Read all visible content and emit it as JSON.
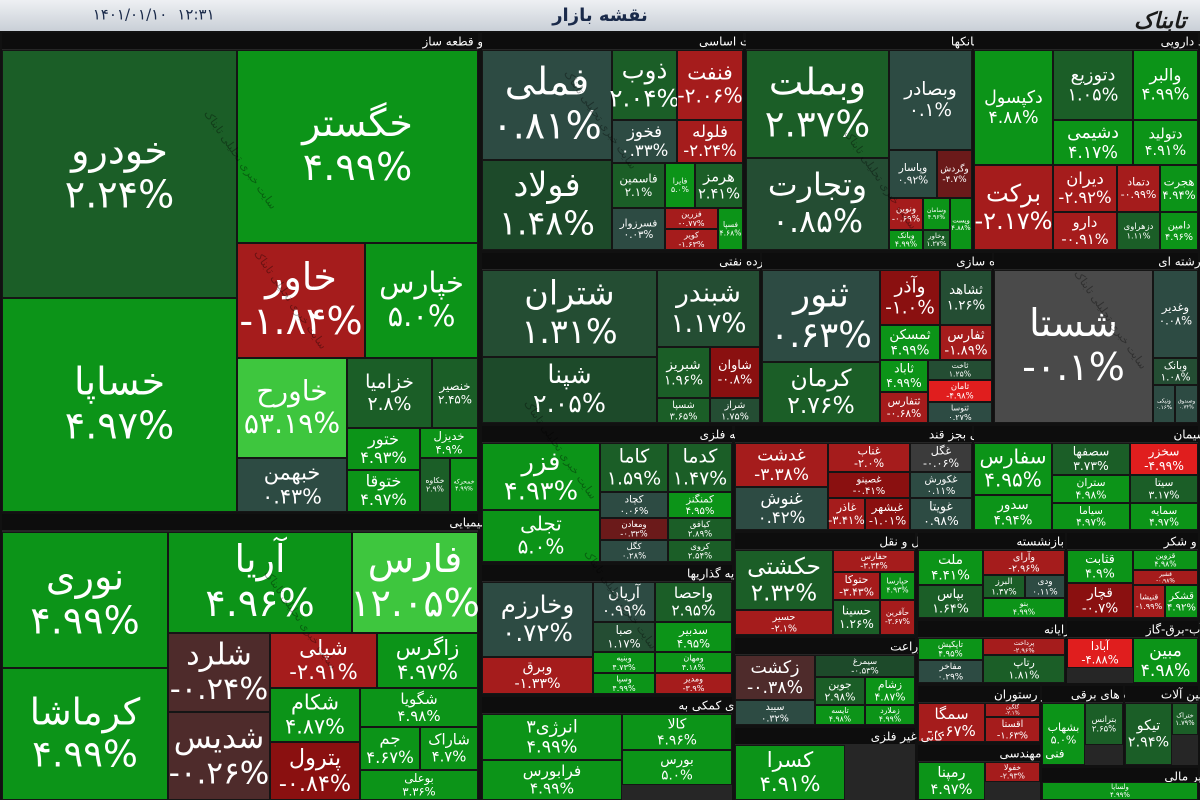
{
  "header": {
    "title": "نقشه بازار",
    "time": "۱۲:۳۱",
    "date": "۱۴۰۱/۰۱/۱۰",
    "logo": "تابناک"
  },
  "watermark": "سایت خبری تحلیلی تابناک",
  "sectors": [
    {
      "title": "خودرو و قطعه ساز",
      "tiles": [
        {
          "name": "خودرو",
          "change": "۲.۲۴%",
          "color": "#1b5e27"
        },
        {
          "name": "خساپا",
          "change": "۴.۹۷%",
          "color": "#0c9418"
        },
        {
          "name": "خگستر",
          "change": "۴.۹۹%",
          "color": "#0c9418"
        },
        {
          "name": "خاور",
          "change": "-۱.۸۴%",
          "color": "#a51c1c"
        },
        {
          "name": "خپارس",
          "change": "۵.۰%",
          "color": "#0c9418"
        },
        {
          "name": "خاورح",
          "change": "۵۳.۱۹%",
          "color": "#3ec63e"
        },
        {
          "name": "خبهمن",
          "change": "۰.۴۳%",
          "color": "#2d4b43"
        },
        {
          "name": "خزامیا",
          "change": "۲.۸%",
          "color": "#1b5e27"
        },
        {
          "name": "خنصیر",
          "change": "۲.۴۵%",
          "color": "#1b5e27"
        },
        {
          "name": "ختور",
          "change": "۴.۹۳%",
          "color": "#0c9418"
        },
        {
          "name": "خدیزل",
          "change": "۴.۹%",
          "color": "#0c9418"
        },
        {
          "name": "ختوقا",
          "change": "۴.۹۷%",
          "color": "#0c9418"
        },
        {
          "name": "خکاوه",
          "change": "۲.۹%",
          "color": "#1b5e27"
        },
        {
          "name": "خمحرکه",
          "change": "۴.۹۹%",
          "color": "#0c9418"
        }
      ]
    },
    {
      "title": "شیمیایی",
      "tiles": [
        {
          "name": "نوری",
          "change": "۴.۹۹%",
          "color": "#0c9418"
        },
        {
          "name": "کرماشا",
          "change": "۴.۹۹%",
          "color": "#0c9418"
        },
        {
          "name": "آریا",
          "change": "۴.۹۶%",
          "color": "#0c9418"
        },
        {
          "name": "فارس",
          "change": "۱۲.۰۵%",
          "color": "#3ec63e"
        },
        {
          "name": "شلرد",
          "change": "-۰.۲۴%",
          "color": "#4e2b2b"
        },
        {
          "name": "شدیس",
          "change": "-۰.۲۶%",
          "color": "#4e2b2b"
        },
        {
          "name": "شپلی",
          "change": "-۲.۹۱%",
          "color": "#a51c1c"
        },
        {
          "name": "زاگرس",
          "change": "۴.۹۷%",
          "color": "#0c9418"
        },
        {
          "name": "شکام",
          "change": "۴.۸۷%",
          "color": "#0c9418"
        },
        {
          "name": "شگویا",
          "change": "۴.۹۸%",
          "color": "#0c9418"
        },
        {
          "name": "پترول",
          "change": "-۰.۸۴%",
          "color": "#8a1010"
        },
        {
          "name": "جم",
          "change": "۴.۶۷%",
          "color": "#0c9418"
        },
        {
          "name": "شاراک",
          "change": "۴.۷%",
          "color": "#0c9418"
        },
        {
          "name": "بوعلی",
          "change": "۳.۳۶%",
          "color": "#0c9418"
        }
      ]
    },
    {
      "title": "فلزات اساسی",
      "tiles": [
        {
          "name": "فملی",
          "change": "۰.۸۱%",
          "color": "#2d4b43"
        },
        {
          "name": "فولاد",
          "change": "۱.۴۸%",
          "color": "#1d4a2a"
        },
        {
          "name": "ذوب",
          "change": "۲.۰۴%",
          "color": "#1b5e27"
        },
        {
          "name": "فنفت",
          "change": "-۲.۰۶%",
          "color": "#a51c1c"
        },
        {
          "name": "فخوز",
          "change": "۰.۳۳%",
          "color": "#2d4b43"
        },
        {
          "name": "فلوله",
          "change": "-۲.۲۴%",
          "color": "#a51c1c"
        },
        {
          "name": "فاسمین",
          "change": "۲.۱%",
          "color": "#1b5e27"
        },
        {
          "name": "فایرا",
          "change": "۵.۰%",
          "color": "#0c9418"
        },
        {
          "name": "هرمز",
          "change": "۲.۴۱%",
          "color": "#1b5e27"
        },
        {
          "name": "فسرزوار",
          "change": "۰.۰۳%",
          "color": "#2d4b43"
        },
        {
          "name": "فزرین",
          "change": "-۰.۷۷%",
          "color": "#a51c1c"
        },
        {
          "name": "کویر",
          "change": "-۱.۶۳%",
          "color": "#a51c1c"
        },
        {
          "name": "فسپا",
          "change": "۴.۶۸%",
          "color": "#0c9418"
        }
      ]
    },
    {
      "title": "بانکها",
      "tiles": [
        {
          "name": "وبملت",
          "change": "۲.۳۷%",
          "color": "#1b5e27"
        },
        {
          "name": "وتجارت",
          "change": "۰.۸۵%",
          "color": "#244d33"
        },
        {
          "name": "وبصادر",
          "change": "۰.۱%",
          "color": "#2d4b43"
        },
        {
          "name": "وپاسار",
          "change": "۰.۹۲%",
          "color": "#2d4b43"
        },
        {
          "name": "وگردش",
          "change": "-۴.۷%",
          "color": "#6b1a1a"
        },
        {
          "name": "ونوین",
          "change": "-۰.۶۹%",
          "color": "#a51c1c"
        },
        {
          "name": "وبانک",
          "change": "۴.۹۹%",
          "color": "#0c9418"
        },
        {
          "name": "وسامان",
          "change": "۴.۹۶%",
          "color": "#0c9418"
        },
        {
          "name": "وخاور",
          "change": "۱.۲۷%",
          "color": "#1b5e27"
        },
        {
          "name": "وپست",
          "change": "۴.۸۸%",
          "color": "#0c9418"
        }
      ]
    },
    {
      "title": "مواد دارویی",
      "tiles": [
        {
          "name": "دکپسول",
          "change": "۴.۸۸%",
          "color": "#0c9418"
        },
        {
          "name": "دتوزیع",
          "change": "۱.۰۵%",
          "color": "#1b5e27"
        },
        {
          "name": "دشیمی",
          "change": "۴.۱۷%",
          "color": "#0c9418"
        },
        {
          "name": "والبر",
          "change": "۴.۹۹%",
          "color": "#0c9418"
        },
        {
          "name": "دتولید",
          "change": "۴.۹۱%",
          "color": "#0c9418"
        },
        {
          "name": "برکت",
          "change": "-۲.۱۷%",
          "color": "#a51c1c"
        },
        {
          "name": "دیران",
          "change": "-۲.۹۲%",
          "color": "#a51c1c"
        },
        {
          "name": "دتماد",
          "change": "-۰.۹۹%",
          "color": "#a51c1c"
        },
        {
          "name": "هجرت",
          "change": "۴.۹۴%",
          "color": "#0c9418"
        },
        {
          "name": "دارو",
          "change": "-۰.۹۱%",
          "color": "#a51c1c"
        },
        {
          "name": "دزهراوی",
          "change": "۱.۱۱%",
          "color": "#1b5e27"
        },
        {
          "name": "دامین",
          "change": "۴.۹۶%",
          "color": "#0c9418"
        }
      ]
    },
    {
      "title": "فرآورده نفتی",
      "tiles": [
        {
          "name": "شتران",
          "change": "۱.۳۱%",
          "color": "#244d33"
        },
        {
          "name": "شپنا",
          "change": "۲.۰۵%",
          "color": "#1d4a2a"
        },
        {
          "name": "شبندر",
          "change": "۱.۱۷%",
          "color": "#244d33"
        },
        {
          "name": "شبریز",
          "change": "۱.۹۶%",
          "color": "#1b5e27"
        },
        {
          "name": "شاوان",
          "change": "-۰.۸%",
          "color": "#8a1010"
        },
        {
          "name": "شسپا",
          "change": "۳.۶۵%",
          "color": "#1b5e27"
        },
        {
          "name": "شراز",
          "change": "۱.۷۵%",
          "color": "#244d33"
        }
      ]
    },
    {
      "title": "انبوه سازی",
      "tiles": [
        {
          "name": "ثنور",
          "change": "۰.۶۳%",
          "color": "#2d4b43"
        },
        {
          "name": "کرمان",
          "change": "۲.۷۶%",
          "color": "#1b5e27"
        },
        {
          "name": "وآذر",
          "change": "-۱.۰%",
          "color": "#8a1010"
        },
        {
          "name": "ثشاهد",
          "change": "۱.۲۶%",
          "color": "#244d33"
        },
        {
          "name": "ثمسکن",
          "change": "۴.۹۹%",
          "color": "#0c9418"
        },
        {
          "name": "ثفارس",
          "change": "-۱.۸۹%",
          "color": "#a51c1c"
        },
        {
          "name": "ثاباد",
          "change": "۴.۹۹%",
          "color": "#0c9418"
        },
        {
          "name": "ثاخت",
          "change": "۱.۲۵%",
          "color": "#244d33"
        },
        {
          "name": "ثامان",
          "change": "-۴.۹۸%",
          "color": "#e01e1e"
        },
        {
          "name": "ثتفارس",
          "change": "-۰.۶۸%",
          "color": "#a51c1c"
        },
        {
          "name": "ثتوسا",
          "change": "۰.۲۷%",
          "color": "#2d4b43"
        }
      ]
    },
    {
      "title": "چند رشته ای",
      "tiles": [
        {
          "name": "شستا",
          "change": "-۰.۱%",
          "color": "#4a4a4a"
        },
        {
          "name": "وغدیر",
          "change": "۰.۰۸%",
          "color": "#2d4b43"
        },
        {
          "name": "وبانک",
          "change": "۱.۰۸%",
          "color": "#244d33"
        },
        {
          "name": "ونیکی",
          "change": "۰.۱۶%",
          "color": "#2d4b43"
        },
        {
          "name": "وصندوق",
          "change": "۰.۷۴%",
          "color": "#2d4b43"
        }
      ]
    },
    {
      "title": "کانه فلزی",
      "tiles": [
        {
          "name": "فزر",
          "change": "۴.۹۳%",
          "color": "#0c9418"
        },
        {
          "name": "تجلی",
          "change": "۵.۰%",
          "color": "#0c9418"
        },
        {
          "name": "کاما",
          "change": "۱.۵۹%",
          "color": "#1b5e27"
        },
        {
          "name": "کدما",
          "change": "۱.۴۷%",
          "color": "#1b5e27"
        },
        {
          "name": "کچاد",
          "change": "۰.۰۶%",
          "color": "#2d4b43"
        },
        {
          "name": "کمنگنز",
          "change": "۴.۹۵%",
          "color": "#0c9418"
        },
        {
          "name": "ومعادن",
          "change": "-۰.۳۲%",
          "color": "#6b1a1a"
        },
        {
          "name": "کگل",
          "change": "۰.۲۸%",
          "color": "#2d4b43"
        },
        {
          "name": "کیافق",
          "change": "۲.۸۹%",
          "color": "#1b5e27"
        },
        {
          "name": "کروی",
          "change": "۲.۵۴%",
          "color": "#1b5e27"
        }
      ]
    },
    {
      "title": "غذایی بجز قند",
      "tiles": [
        {
          "name": "غدشت",
          "change": "-۳.۳۸%",
          "color": "#a51c1c"
        },
        {
          "name": "غنوش",
          "change": "۰.۴۲%",
          "color": "#2d4b43"
        },
        {
          "name": "غناب",
          "change": "-۲.۰%",
          "color": "#a51c1c"
        },
        {
          "name": "غگل",
          "change": "-۰.۰۶%",
          "color": "#3b3b3b"
        },
        {
          "name": "غصینو",
          "change": "-۰.۴۱%",
          "color": "#8a1010"
        },
        {
          "name": "غکورش",
          "change": "۰.۱۱%",
          "color": "#2d4b43"
        },
        {
          "name": "غاذر",
          "change": "-۳.۴۱%",
          "color": "#a51c1c"
        },
        {
          "name": "غبشهر",
          "change": "-۱.۰۱%",
          "color": "#8a1010"
        },
        {
          "name": "غویتا",
          "change": "۰.۹۸%",
          "color": "#2d4b43"
        }
      ]
    },
    {
      "title": "سیمان",
      "tiles": [
        {
          "name": "سفارس",
          "change": "۴.۹۵%",
          "color": "#0c9418"
        },
        {
          "name": "سدور",
          "change": "۴.۹۴%",
          "color": "#0c9418"
        },
        {
          "name": "سصفها",
          "change": "۳.۷۳%",
          "color": "#1b5e27"
        },
        {
          "name": "سخزر",
          "change": "-۴.۹۹%",
          "color": "#e01e1e"
        },
        {
          "name": "ستران",
          "change": "۴.۹۸%",
          "color": "#0c9418"
        },
        {
          "name": "سیتا",
          "change": "۳.۱۷%",
          "color": "#1b5e27"
        },
        {
          "name": "سیاما",
          "change": "۴.۹۷%",
          "color": "#0c9418"
        },
        {
          "name": "سمایه",
          "change": "۴.۹۷%",
          "color": "#0c9418"
        }
      ]
    },
    {
      "title": "سرمایه گذاریها",
      "tiles": [
        {
          "name": "وخارزم",
          "change": "۰.۷۲%",
          "color": "#2d4b43"
        },
        {
          "name": "وبرق",
          "change": "-۱.۳۳%",
          "color": "#a51c1c"
        },
        {
          "name": "آریان",
          "change": "۰.۹۹%",
          "color": "#2d4b43"
        },
        {
          "name": "واحصا",
          "change": "۲.۹۵%",
          "color": "#1b5e27"
        },
        {
          "name": "صبا",
          "change": "۱.۱۷%",
          "color": "#244d33"
        },
        {
          "name": "سدبیر",
          "change": "۴.۹۵%",
          "color": "#0c9418"
        },
        {
          "name": "وبنیه",
          "change": "۴.۷۳%",
          "color": "#0c9418"
        },
        {
          "name": "ومهان",
          "change": "۴.۱۸%",
          "color": "#0c9418"
        },
        {
          "name": "وسپا",
          "change": "۴.۹۹%",
          "color": "#0c9418"
        },
        {
          "name": "ومدیر",
          "change": "-۳.۹%",
          "color": "#a51c1c"
        }
      ]
    },
    {
      "title": "فعالیتهای کمکی به",
      "tiles": [
        {
          "name": "انرژی۳",
          "change": "۴.۹۹%",
          "color": "#0c9418"
        },
        {
          "name": "فرابورس",
          "change": "۴.۹۹%",
          "color": "#0c9418"
        },
        {
          "name": "کالا",
          "change": "۴.۹۶%",
          "color": "#0c9418"
        },
        {
          "name": "بورس",
          "change": "۵.۰%",
          "color": "#0c9418"
        }
      ]
    },
    {
      "title": "حمل و نقل",
      "tiles": [
        {
          "name": "حکشتی",
          "change": "۲.۳۲%",
          "color": "#1b5e27"
        },
        {
          "name": "حسیر",
          "change": "-۲.۱%",
          "color": "#a51c1c"
        },
        {
          "name": "حفارس",
          "change": "-۳.۳۴%",
          "color": "#a51c1c"
        },
        {
          "name": "حتوکا",
          "change": "-۳.۴۳%",
          "color": "#a51c1c"
        },
        {
          "name": "حپارسا",
          "change": "۴.۹۳%",
          "color": "#0c9418"
        },
        {
          "name": "حسینا",
          "change": "۱.۲۶%",
          "color": "#1b5e27"
        },
        {
          "name": "حآفرین",
          "change": "-۳.۶۷%",
          "color": "#a51c1c"
        }
      ]
    },
    {
      "title": "بیمه و بازنشسته",
      "tiles": [
        {
          "name": "ملت",
          "change": "۴.۴۱%",
          "color": "#0c9418"
        },
        {
          "name": "وآرای",
          "change": "-۲.۹۶%",
          "color": "#a51c1c"
        },
        {
          "name": "البرز",
          "change": "۱.۴۷%",
          "color": "#1b5e27"
        },
        {
          "name": "ودی",
          "change": "۰.۱۱%",
          "color": "#2d4b43"
        },
        {
          "name": "بپاس",
          "change": "۱.۶۴%",
          "color": "#1b5e27"
        },
        {
          "name": "بنو",
          "change": "۴.۹۹%",
          "color": "#0c9418"
        }
      ]
    },
    {
      "title": "قند و شکر",
      "tiles": [
        {
          "name": "قثابت",
          "change": "۴.۹%",
          "color": "#0c9418"
        },
        {
          "name": "قزوین",
          "change": "۴.۹۸%",
          "color": "#0c9418"
        },
        {
          "name": "قشیر",
          "change": "-۰.۹۸%",
          "color": "#a51c1c"
        },
        {
          "name": "قچار",
          "change": "-۰.۷%",
          "color": "#8a1010"
        },
        {
          "name": "قنیشا",
          "change": "-۱.۹۹%",
          "color": "#a51c1c"
        },
        {
          "name": "قشکر",
          "change": "۴.۹۲%",
          "color": "#0c9418"
        }
      ]
    },
    {
      "title": "زراعت",
      "tiles": [
        {
          "name": "زکشت",
          "change": "-۰.۳۸%",
          "color": "#4e2b2b"
        },
        {
          "name": "سیبد",
          "change": "۰.۳۲%",
          "color": "#2d4b43"
        },
        {
          "name": "سیمرغ",
          "change": "-۰.۵۳%",
          "color": "#1d4a2a"
        },
        {
          "name": "جوین",
          "change": "۲.۹۸%",
          "color": "#1b5e27"
        },
        {
          "name": "زشام",
          "change": "۴.۸۷%",
          "color": "#0c9418"
        },
        {
          "name": "تایسه",
          "change": "۴.۹۸%",
          "color": "#0c9418"
        },
        {
          "name": "زملارد",
          "change": "۴.۹۹%",
          "color": "#0c9418"
        }
      ]
    },
    {
      "title": "رایانه",
      "tiles": [
        {
          "name": "تاپکیش",
          "change": "۴.۹۵%",
          "color": "#0c9418"
        },
        {
          "name": "پرداخت",
          "change": "-۲.۹۶%",
          "color": "#a51c1c"
        },
        {
          "name": "مفاخر",
          "change": "۰.۲۹%",
          "color": "#2d4b43"
        },
        {
          "name": "رتاپ",
          "change": "۱.۸۱%",
          "color": "#1b5e27"
        }
      ]
    },
    {
      "title": "تامین-آب-برق-گاز",
      "tiles": [
        {
          "name": "آبادا",
          "change": "-۴.۸۸%",
          "color": "#e01e1e"
        },
        {
          "name": "مبین",
          "change": "۴.۹۸%",
          "color": "#0c9418"
        }
      ]
    },
    {
      "title": "هتل و رستوران",
      "tiles": [
        {
          "name": "سمگا",
          "change": "-۰.۶۷%",
          "color": "#a51c1c"
        },
        {
          "name": "گلگین",
          "change": "-۲.۱%",
          "color": "#a51c1c"
        },
        {
          "name": "اقستا",
          "change": "-۱.۶۳%",
          "color": "#a51c1c"
        }
      ]
    },
    {
      "title": "دستگاه های برقی",
      "tiles": [
        {
          "name": "بشهاب",
          "change": "۵.۰%",
          "color": "#0c9418"
        },
        {
          "name": "بترانس",
          "change": "۲.۶۵%",
          "color": "#1b5e27"
        }
      ]
    },
    {
      "title": "ماشین آلات",
      "tiles": [
        {
          "name": "تیکو",
          "change": "۲.۹۴%",
          "color": "#1b5e27"
        },
        {
          "name": "ختراک",
          "change": "۱.۷۹%",
          "color": "#1b5e27"
        }
      ]
    },
    {
      "title": "کانی غیر فلزی",
      "tiles": [
        {
          "name": "کسرا",
          "change": "۴.۹۱%",
          "color": "#0c9418"
        }
      ]
    },
    {
      "title": "فنی مهندسی",
      "tiles": [
        {
          "name": "رمپنا",
          "change": "۴.۹۷%",
          "color": "#0c9418"
        },
        {
          "name": "خفولا",
          "change": "-۲.۹۳%",
          "color": "#a51c1c"
        }
      ]
    },
    {
      "title": "سایر مالی",
      "tiles": [
        {
          "name": "ولساپا",
          "change": "۴.۹۹%",
          "color": "#0c9418"
        }
      ]
    }
  ]
}
